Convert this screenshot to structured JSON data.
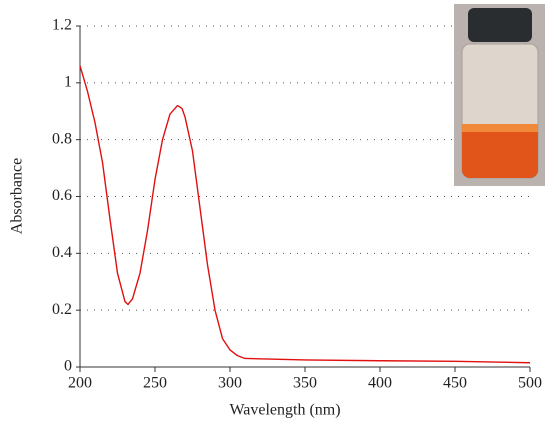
{
  "chart_data": {
    "type": "line",
    "x_label": "Wavelength (nm)",
    "y_label": "Absorbance",
    "x": [
      200,
      205,
      210,
      215,
      220,
      225,
      230,
      232,
      235,
      240,
      245,
      250,
      255,
      260,
      265,
      268,
      270,
      275,
      280,
      285,
      290,
      295,
      300,
      305,
      310,
      350,
      400,
      450,
      500
    ],
    "values": [
      1.06,
      0.97,
      0.86,
      0.72,
      0.52,
      0.33,
      0.23,
      0.22,
      0.24,
      0.33,
      0.48,
      0.66,
      0.8,
      0.89,
      0.92,
      0.91,
      0.88,
      0.76,
      0.56,
      0.36,
      0.2,
      0.1,
      0.06,
      0.04,
      0.03,
      0.025,
      0.022,
      0.02,
      0.015
    ],
    "color": "#e01010",
    "xlim": [
      200,
      500
    ],
    "xticks": [
      200,
      250,
      300,
      350,
      400,
      450,
      500
    ],
    "ylim": [
      0,
      1.2
    ],
    "yticks": [
      0,
      0.2,
      0.4,
      0.6,
      0.8,
      1,
      1.2
    ],
    "grid": true
  }
}
